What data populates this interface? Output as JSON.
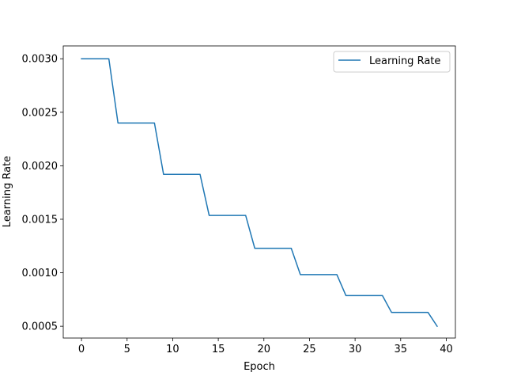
{
  "chart_data": {
    "type": "line",
    "title": "",
    "xlabel": "Epoch",
    "ylabel": "Learning Rate",
    "xlim": [
      -2,
      41
    ],
    "ylim": [
      0.00039,
      0.00312
    ],
    "xticks": [
      0,
      5,
      10,
      15,
      20,
      25,
      30,
      35,
      40
    ],
    "xtick_labels": [
      "0",
      "5",
      "10",
      "15",
      "20",
      "25",
      "30",
      "35",
      "40"
    ],
    "yticks": [
      0.0005,
      0.001,
      0.0015,
      0.002,
      0.0025,
      0.003
    ],
    "ytick_labels": [
      "0.0005",
      "0.0010",
      "0.0015",
      "0.0020",
      "0.0025",
      "0.0030"
    ],
    "grid": false,
    "legend_position": "top-right",
    "series": [
      {
        "name": "Learning Rate",
        "color": "#1f77b4",
        "x": [
          0,
          1,
          2,
          3,
          4,
          5,
          6,
          7,
          8,
          9,
          10,
          11,
          12,
          13,
          14,
          15,
          16,
          17,
          18,
          19,
          20,
          21,
          22,
          23,
          24,
          25,
          26,
          27,
          28,
          29,
          30,
          31,
          32,
          33,
          34,
          35,
          36,
          37,
          38,
          39
        ],
        "y": [
          0.003,
          0.003,
          0.003,
          0.003,
          0.0024,
          0.0024,
          0.0024,
          0.0024,
          0.0024,
          0.00192,
          0.00192,
          0.00192,
          0.00192,
          0.00192,
          0.001536,
          0.001536,
          0.001536,
          0.001536,
          0.001536,
          0.0012288,
          0.0012288,
          0.0012288,
          0.0012288,
          0.0012288,
          0.00098304,
          0.00098304,
          0.00098304,
          0.00098304,
          0.00098304,
          0.000786432,
          0.000786432,
          0.000786432,
          0.000786432,
          0.000786432,
          0.0006291456,
          0.0006291456,
          0.0006291456,
          0.0006291456,
          0.0006291456,
          0.0005
        ]
      }
    ]
  }
}
